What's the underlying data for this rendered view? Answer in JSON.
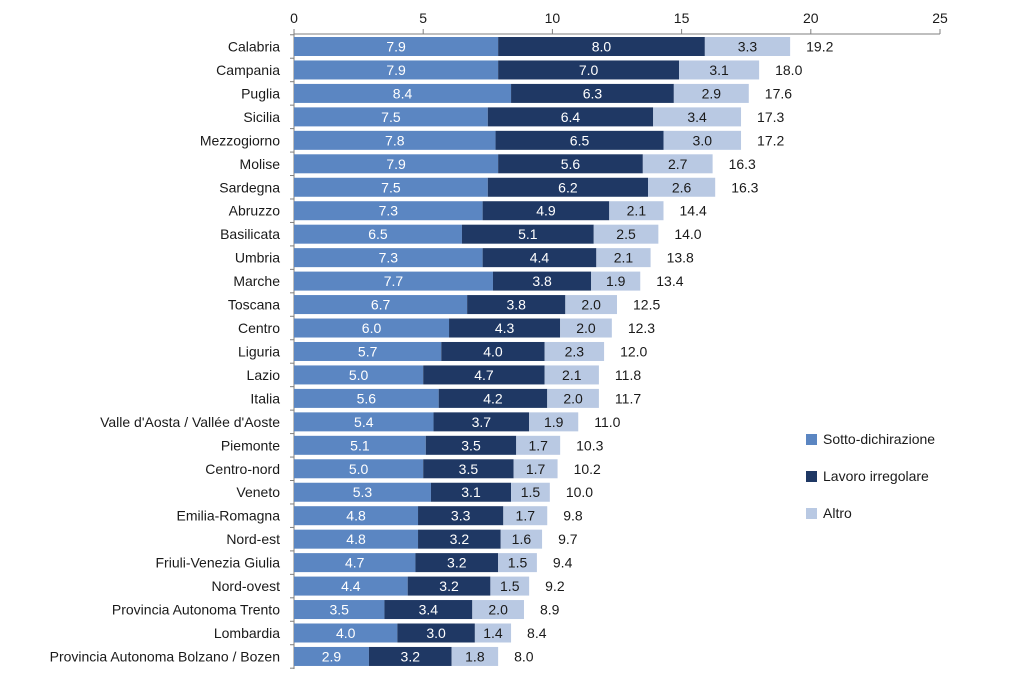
{
  "colors": {
    "sotto": "#5b86c2",
    "lavoro": "#1f3864",
    "altro": "#b9c9e3",
    "axis": "#7f7f7f"
  },
  "chart_data": {
    "type": "bar",
    "orientation": "horizontal",
    "stacked": true,
    "title": "",
    "xlabel": "",
    "ylabel": "",
    "xlim": [
      0,
      25
    ],
    "xticks": [
      0,
      5,
      10,
      15,
      20,
      25
    ],
    "x_axis_position": "top",
    "grid": false,
    "legend_position": "right",
    "categories": [
      "Calabria",
      "Campania",
      "Puglia",
      "Sicilia",
      "Mezzogiorno",
      "Molise",
      "Sardegna",
      "Abruzzo",
      "Basilicata",
      "Umbria",
      "Marche",
      "Toscana",
      "Centro",
      "Liguria",
      "Lazio",
      "Italia",
      "Valle d'Aosta / Vallée d'Aoste",
      "Piemonte",
      "Centro-nord",
      "Veneto",
      "Emilia-Romagna",
      "Nord-est",
      "Friuli-Venezia Giulia",
      "Nord-ovest",
      "Provincia Autonoma Trento",
      "Lombardia",
      "Provincia Autonoma Bolzano / Bozen"
    ],
    "series": [
      {
        "name": "Sotto-dichirazione",
        "color_key": "sotto",
        "values": [
          7.9,
          7.9,
          8.4,
          7.5,
          7.8,
          7.9,
          7.5,
          7.3,
          6.5,
          7.3,
          7.7,
          6.7,
          6.0,
          5.7,
          5.0,
          5.6,
          5.4,
          5.1,
          5.0,
          5.3,
          4.8,
          4.8,
          4.7,
          4.4,
          3.5,
          4.0,
          2.9
        ]
      },
      {
        "name": "Lavoro irregolare",
        "color_key": "lavoro",
        "values": [
          8.0,
          7.0,
          6.3,
          6.4,
          6.5,
          5.6,
          6.2,
          4.9,
          5.1,
          4.4,
          3.8,
          3.8,
          4.3,
          4.0,
          4.7,
          4.2,
          3.7,
          3.5,
          3.5,
          3.1,
          3.3,
          3.2,
          3.2,
          3.2,
          3.4,
          3.0,
          3.2
        ]
      },
      {
        "name": "Altro",
        "color_key": "altro",
        "values": [
          3.3,
          3.1,
          2.9,
          3.4,
          3.0,
          2.7,
          2.6,
          2.1,
          2.5,
          2.1,
          1.9,
          2.0,
          2.0,
          2.3,
          2.1,
          2.0,
          1.9,
          1.7,
          1.7,
          1.5,
          1.7,
          1.6,
          1.5,
          1.5,
          2.0,
          1.4,
          1.8
        ]
      }
    ],
    "totals": [
      19.2,
      18.0,
      17.6,
      17.3,
      17.2,
      16.3,
      16.3,
      14.4,
      14.0,
      13.8,
      13.4,
      12.5,
      12.3,
      12.0,
      11.8,
      11.7,
      11.0,
      10.3,
      10.2,
      10.0,
      9.8,
      9.7,
      9.4,
      9.2,
      8.9,
      8.4,
      8.0
    ]
  }
}
